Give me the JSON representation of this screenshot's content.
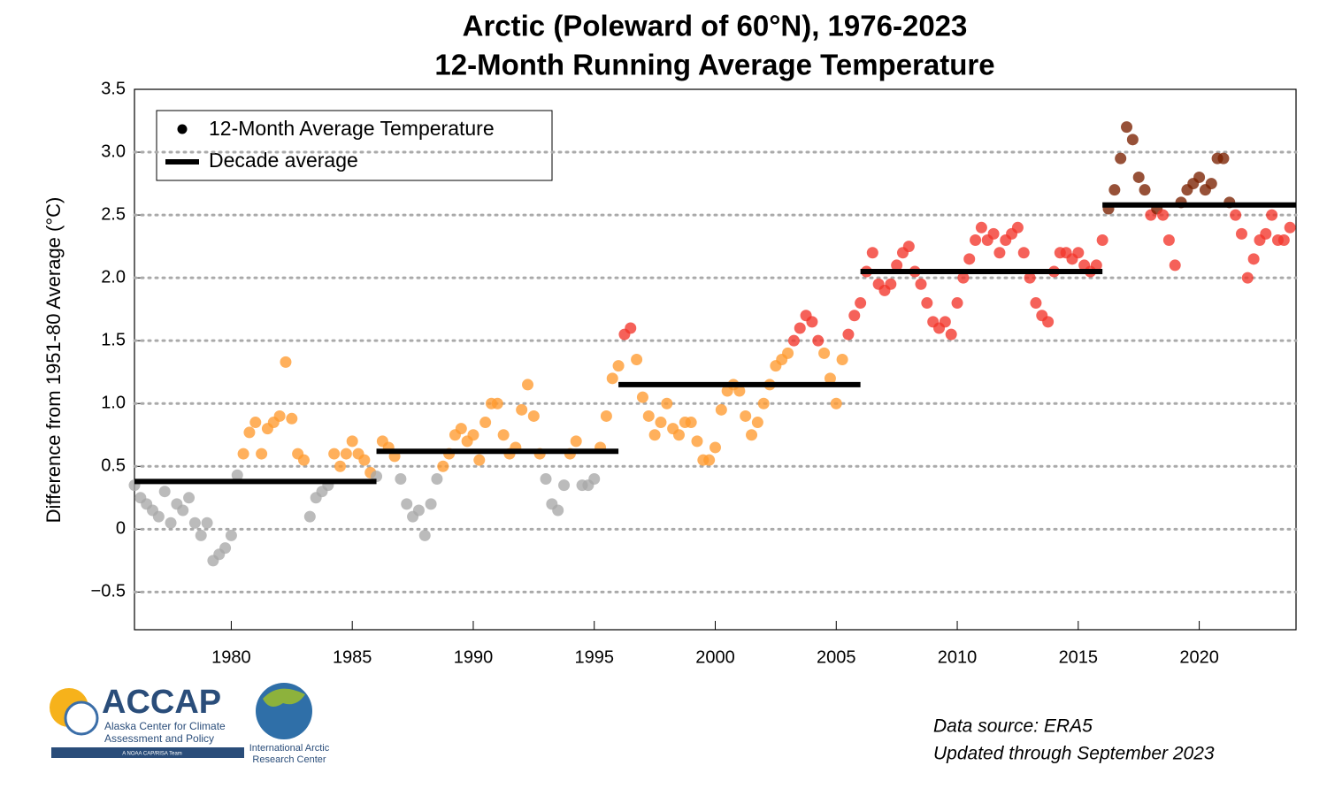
{
  "chart_data": {
    "type": "scatter",
    "title": "Arctic (Poleward of 60°N), 1976-2023",
    "subtitle": "12-Month Running Average Temperature",
    "y_label": "Difference from 1951-80 Average (°C)",
    "xlim": [
      1976,
      2024
    ],
    "xticks": [
      1980,
      1985,
      1990,
      1995,
      2000,
      2005,
      2010,
      2015,
      2020
    ],
    "ylim": [
      -0.8,
      3.5
    ],
    "yticks": [
      {
        "value": -0.5,
        "label": "−0.5"
      },
      0,
      0.5,
      {
        "value": 1,
        "label": "1.0"
      },
      1.5,
      {
        "value": 2,
        "label": "2.0"
      },
      2.5,
      {
        "value": 3,
        "label": "3.0"
      },
      3.5
    ],
    "grid": true,
    "legend": "upper left",
    "color_thresholds": [
      0.45,
      1.5,
      2.55
    ],
    "colors": [
      "#a8a8a8",
      "#ff9a2e",
      "#f2342a",
      "#7a2000"
    ],
    "series": [
      {
        "name": "12-Month Average Temperature",
        "color": "#000000",
        "x": [
          1976,
          1976.25,
          1976.5,
          1976.75,
          1977,
          1977.25,
          1977.5,
          1977.75,
          1978,
          1978.25,
          1978.5,
          1978.75,
          1979,
          1979.25,
          1979.5,
          1979.75,
          1980,
          1980.25,
          1980.5,
          1980.75,
          1981,
          1981.25,
          1981.5,
          1981.75,
          1982,
          1982.25,
          1982.5,
          1982.75,
          1983,
          1983.25,
          1983.5,
          1983.75,
          1984,
          1984.25,
          1984.5,
          1984.75,
          1985,
          1985.25,
          1985.5,
          1985.75,
          1986,
          1986.25,
          1986.5,
          1986.75,
          1987,
          1987.25,
          1987.5,
          1987.75,
          1988,
          1988.25,
          1988.5,
          1988.75,
          1989,
          1989.25,
          1989.5,
          1989.75,
          1990,
          1990.25,
          1990.5,
          1990.75,
          1991,
          1991.25,
          1991.5,
          1991.75,
          1992,
          1992.25,
          1992.5,
          1992.75,
          1993,
          1993.25,
          1993.5,
          1993.75,
          1994,
          1994.25,
          1994.5,
          1994.75,
          1995,
          1995.25,
          1995.5,
          1995.75,
          1996,
          1996.25,
          1996.5,
          1996.75,
          1997,
          1997.25,
          1997.5,
          1997.75,
          1998,
          1998.25,
          1998.5,
          1998.75,
          1999,
          1999.25,
          1999.5,
          1999.75,
          2000,
          2000.25,
          2000.5,
          2000.75,
          2001,
          2001.25,
          2001.5,
          2001.75,
          2002,
          2002.25,
          2002.5,
          2002.75,
          2003,
          2003.25,
          2003.5,
          2003.75,
          2004,
          2004.25,
          2004.5,
          2004.75,
          2005,
          2005.25,
          2005.5,
          2005.75,
          2006,
          2006.25,
          2006.5,
          2006.75,
          2007,
          2007.25,
          2007.5,
          2007.75,
          2008,
          2008.25,
          2008.5,
          2008.75,
          2009,
          2009.25,
          2009.5,
          2009.75,
          2010,
          2010.25,
          2010.5,
          2010.75,
          2011,
          2011.25,
          2011.5,
          2011.75,
          2012,
          2012.25,
          2012.5,
          2012.75,
          2013,
          2013.25,
          2013.5,
          2013.75,
          2014,
          2014.25,
          2014.5,
          2014.75,
          2015,
          2015.25,
          2015.5,
          2015.75,
          2016,
          2016.25,
          2016.5,
          2016.75,
          2017,
          2017.25,
          2017.5,
          2017.75,
          2018,
          2018.25,
          2018.5,
          2018.75,
          2019,
          2019.25,
          2019.5,
          2019.75,
          2020,
          2020.25,
          2020.5,
          2020.75,
          2021,
          2021.25,
          2021.5,
          2021.75,
          2022,
          2022.25,
          2022.5,
          2022.75,
          2023,
          2023.25,
          2023.5,
          2023.75
        ],
        "values": [
          0.35,
          0.25,
          0.2,
          0.15,
          0.1,
          0.3,
          0.05,
          0.2,
          0.15,
          0.25,
          0.05,
          -0.05,
          0.05,
          -0.25,
          -0.2,
          -0.15,
          -0.05,
          0.43,
          0.6,
          0.77,
          0.85,
          0.6,
          0.8,
          0.85,
          0.9,
          1.33,
          0.88,
          0.6,
          0.55,
          0.1,
          0.25,
          0.3,
          0.35,
          0.6,
          0.5,
          0.6,
          0.7,
          0.6,
          0.55,
          0.45,
          0.42,
          0.7,
          0.65,
          0.58,
          0.4,
          0.2,
          0.1,
          0.15,
          -0.05,
          0.2,
          0.4,
          0.5,
          0.6,
          0.75,
          0.8,
          0.7,
          0.75,
          0.55,
          0.85,
          1.0,
          1.0,
          0.75,
          0.6,
          0.65,
          0.95,
          1.15,
          0.9,
          0.6,
          0.4,
          0.2,
          0.15,
          0.35,
          0.6,
          0.7,
          0.35,
          0.35,
          0.4,
          0.65,
          0.9,
          1.2,
          1.3,
          1.55,
          1.6,
          1.35,
          1.05,
          0.9,
          0.75,
          0.85,
          1.0,
          0.8,
          0.75,
          0.85,
          0.85,
          0.7,
          0.55,
          0.55,
          0.65,
          0.95,
          1.1,
          1.15,
          1.1,
          0.9,
          0.75,
          0.85,
          1.0,
          1.15,
          1.3,
          1.35,
          1.4,
          1.5,
          1.6,
          1.7,
          1.65,
          1.5,
          1.4,
          1.2,
          1.0,
          1.35,
          1.55,
          1.7,
          1.8,
          2.05,
          2.2,
          1.95,
          1.9,
          1.95,
          2.1,
          2.2,
          2.25,
          2.05,
          1.95,
          1.8,
          1.65,
          1.6,
          1.65,
          1.55,
          1.8,
          2.0,
          2.15,
          2.3,
          2.4,
          2.3,
          2.35,
          2.2,
          2.3,
          2.35,
          2.4,
          2.2,
          2.0,
          1.8,
          1.7,
          1.65,
          2.05,
          2.2,
          2.2,
          2.15,
          2.2,
          2.1,
          2.05,
          2.1,
          2.3,
          2.55,
          2.7,
          2.95,
          3.2,
          3.1,
          2.8,
          2.7,
          2.5,
          2.55,
          2.5,
          2.3,
          2.1,
          2.6,
          2.7,
          2.75,
          2.8,
          2.7,
          2.75,
          2.95,
          2.95,
          2.6,
          2.5,
          2.35,
          2.0,
          2.15,
          2.3,
          2.35,
          2.5,
          2.3,
          2.3,
          2.4
        ]
      },
      {
        "name": "Decade average",
        "color": "#000000",
        "x_start": [
          1976,
          1986,
          1996,
          2006,
          2016
        ],
        "x_end": [
          1986,
          1996,
          2006,
          2016,
          2024
        ],
        "values": [
          0.38,
          0.62,
          1.15,
          2.05,
          2.58
        ]
      }
    ]
  },
  "footer": {
    "source": "Data source: ERA5",
    "updated": "Updated through September 2023"
  },
  "logos": {
    "accap": "ACCAP",
    "accap_line1": "Alaska Center for Climate",
    "accap_line2": "Assessment and Policy",
    "accap_tag": "A NOAA CAP/RISA Team",
    "iarc_line1": "International Arctic",
    "iarc_line2": "Research Center"
  }
}
